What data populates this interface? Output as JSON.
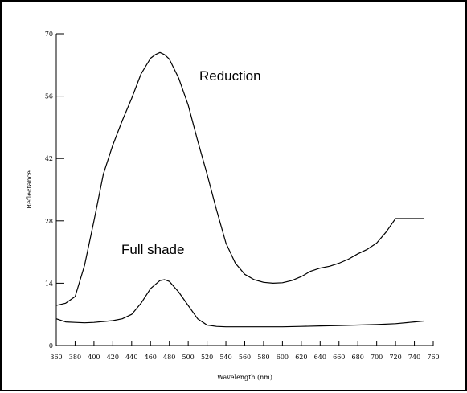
{
  "chart_data": {
    "type": "line",
    "title": "",
    "xlabel": "Wavelength (nm)",
    "ylabel": "Reflectance",
    "xlim": [
      360,
      760
    ],
    "ylim": [
      0,
      70
    ],
    "xticks": [
      360,
      380,
      400,
      420,
      440,
      460,
      480,
      500,
      520,
      540,
      560,
      580,
      600,
      620,
      640,
      660,
      680,
      700,
      720,
      740,
      760
    ],
    "yticks": [
      0,
      14,
      28,
      42,
      56,
      70
    ],
    "grid": false,
    "series": [
      {
        "name": "Reduction",
        "color": "#000000",
        "x": [
          360,
          370,
          380,
          390,
          400,
          410,
          420,
          430,
          440,
          450,
          460,
          465,
          470,
          475,
          480,
          490,
          500,
          510,
          520,
          530,
          540,
          550,
          560,
          570,
          580,
          590,
          600,
          610,
          620,
          630,
          640,
          650,
          660,
          670,
          680,
          690,
          700,
          710,
          720,
          730,
          740,
          750
        ],
        "y": [
          9,
          9.5,
          11,
          18,
          28,
          38.5,
          45,
          50.5,
          55.5,
          61,
          64.5,
          65.3,
          65.8,
          65.3,
          64.3,
          60,
          54,
          46,
          38.5,
          30.5,
          23,
          18.5,
          16,
          14.8,
          14.2,
          14.0,
          14.1,
          14.6,
          15.5,
          16.7,
          17.4,
          17.8,
          18.5,
          19.4,
          20.6,
          21.6,
          23,
          25.5,
          28.5,
          28.5,
          28.5,
          28.5
        ]
      },
      {
        "name": "Full shade",
        "color": "#000000",
        "x": [
          360,
          370,
          380,
          390,
          400,
          410,
          420,
          430,
          440,
          450,
          460,
          470,
          475,
          480,
          490,
          500,
          510,
          520,
          530,
          540,
          560,
          580,
          600,
          620,
          640,
          660,
          680,
          700,
          720,
          740,
          750
        ],
        "y": [
          6,
          5.3,
          5.2,
          5.1,
          5.2,
          5.4,
          5.6,
          6,
          7,
          9.5,
          12.8,
          14.6,
          14.8,
          14.4,
          12,
          9,
          6,
          4.6,
          4.3,
          4.2,
          4.2,
          4.2,
          4.2,
          4.3,
          4.4,
          4.5,
          4.6,
          4.7,
          4.9,
          5.3,
          5.5
        ]
      }
    ],
    "annotations": [
      {
        "text": "Reduction",
        "series": 0
      },
      {
        "text": "Full shade",
        "series": 1
      }
    ]
  }
}
